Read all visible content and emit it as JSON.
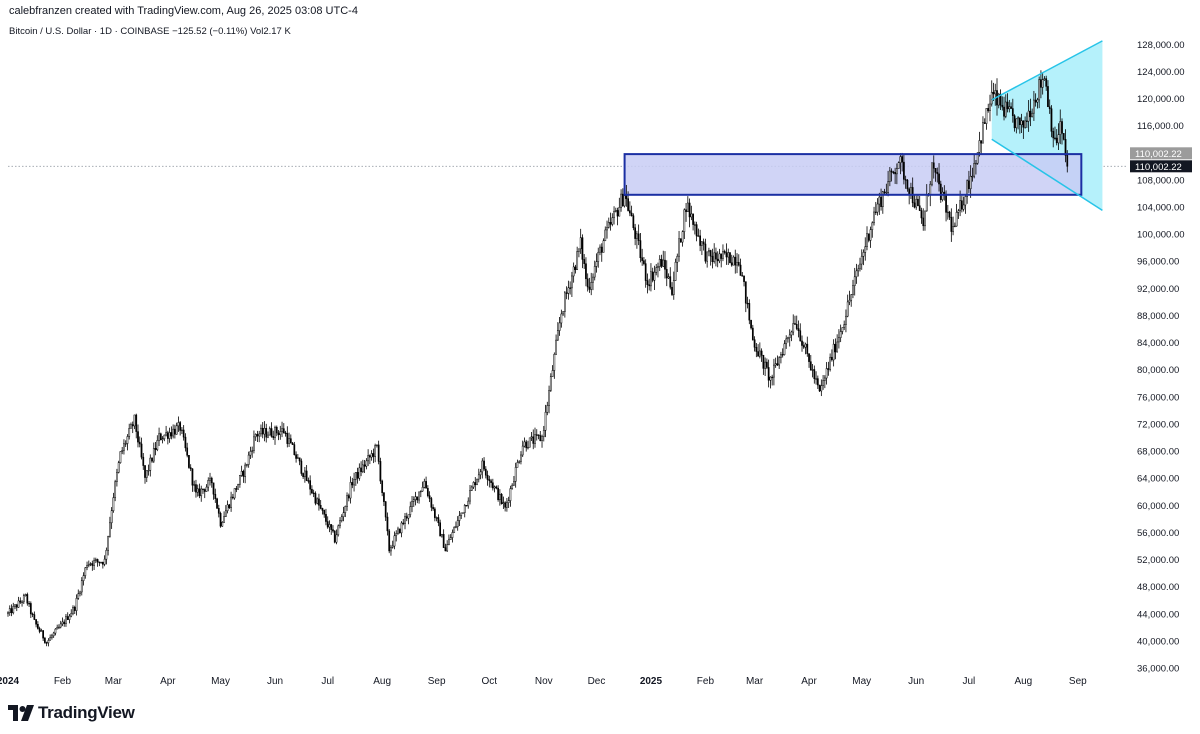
{
  "header": {
    "created_line": "calebfranzen created with TradingView.com, Aug 26, 2025 03:08 UTC-4",
    "symbol_line": "Bitcoin / U.S. Dollar · 1D · COINBASE  −125.52 (−0.11%)  Vol2.17 K"
  },
  "logo": {
    "text": "TradingView",
    "icon": "tradingview-logo-icon"
  },
  "colors": {
    "candle": "#000000",
    "zone_fill": "#c8cdf5",
    "zone_border": "#1b2fa3",
    "wedge_fill": "#b5f1fb",
    "wedge_line": "#27c4e8",
    "price_line": "#9aa0a8",
    "badge_last": "#131722",
    "badge_prev": "#9b9b9b"
  },
  "chart_data": {
    "type": "candlestick",
    "title": "",
    "xlabel": "",
    "ylabel": "",
    "ylim": [
      33500,
      130400
    ],
    "y_ticks": [
      36000,
      40000,
      44000,
      48000,
      52000,
      56000,
      60000,
      64000,
      68000,
      72000,
      76000,
      80000,
      84000,
      88000,
      92000,
      96000,
      100000,
      104000,
      108000,
      112000,
      116000,
      120000,
      124000,
      128000
    ],
    "y_tick_labels": [
      "36,000.00",
      "40,000.00",
      "44,000.00",
      "48,000.00",
      "52,000.00",
      "56,000.00",
      "60,000.00",
      "64,000.00",
      "68,000.00",
      "72,000.00",
      "76,000.00",
      "80,000.00",
      "84,000.00",
      "88,000.00",
      "92,000.00",
      "96,000.00",
      "100,000.00",
      "104,000.00",
      "108,000.00",
      "112,000.00",
      "116,000.00",
      "120,000.00",
      "124,000.00",
      "128,000.00"
    ],
    "x_range": [
      "2024-01-01",
      "2025-09-29"
    ],
    "x_ticks": [
      {
        "date": "2024-01-01",
        "label": "2024",
        "bold": true
      },
      {
        "date": "2024-02-01",
        "label": "Feb"
      },
      {
        "date": "2024-03-01",
        "label": "Mar"
      },
      {
        "date": "2024-04-01",
        "label": "Apr"
      },
      {
        "date": "2024-05-01",
        "label": "May"
      },
      {
        "date": "2024-06-01",
        "label": "Jun"
      },
      {
        "date": "2024-07-01",
        "label": "Jul"
      },
      {
        "date": "2024-08-01",
        "label": "Aug"
      },
      {
        "date": "2024-09-01",
        "label": "Sep"
      },
      {
        "date": "2024-10-01",
        "label": "Oct"
      },
      {
        "date": "2024-11-01",
        "label": "Nov"
      },
      {
        "date": "2024-12-01",
        "label": "Dec"
      },
      {
        "date": "2025-01-01",
        "label": "2025",
        "bold": true
      },
      {
        "date": "2025-02-01",
        "label": "Feb"
      },
      {
        "date": "2025-03-01",
        "label": "Mar"
      },
      {
        "date": "2025-04-01",
        "label": "Apr"
      },
      {
        "date": "2025-05-01",
        "label": "May"
      },
      {
        "date": "2025-06-01",
        "label": "Jun"
      },
      {
        "date": "2025-07-01",
        "label": "Jul"
      },
      {
        "date": "2025-08-01",
        "label": "Aug"
      },
      {
        "date": "2025-09-01",
        "label": "Sep"
      }
    ],
    "start_date": "2024-01-01",
    "close_path": [
      [
        "2024-01-01",
        44000
      ],
      [
        "2024-01-11",
        46500
      ],
      [
        "2024-01-16",
        42800
      ],
      [
        "2024-01-23",
        39800
      ],
      [
        "2024-02-01",
        42500
      ],
      [
        "2024-02-08",
        45000
      ],
      [
        "2024-02-15",
        51500
      ],
      [
        "2024-02-25",
        51800
      ],
      [
        "2024-03-01",
        61500
      ],
      [
        "2024-03-05",
        67500
      ],
      [
        "2024-03-13",
        72500
      ],
      [
        "2024-03-19",
        64000
      ],
      [
        "2024-03-27",
        70000
      ],
      [
        "2024-04-08",
        71500
      ],
      [
        "2024-04-17",
        61500
      ],
      [
        "2024-04-26",
        63500
      ],
      [
        "2024-05-01",
        57500
      ],
      [
        "2024-05-15",
        65500
      ],
      [
        "2024-05-21",
        70500
      ],
      [
        "2024-06-06",
        71000
      ],
      [
        "2024-06-24",
        61000
      ],
      [
        "2024-07-05",
        55000
      ],
      [
        "2024-07-15",
        63500
      ],
      [
        "2024-07-29",
        68500
      ],
      [
        "2024-08-05",
        53500
      ],
      [
        "2024-08-25",
        63500
      ],
      [
        "2024-09-06",
        53500
      ],
      [
        "2024-09-27",
        66000
      ],
      [
        "2024-10-10",
        59500
      ],
      [
        "2024-10-20",
        69000
      ],
      [
        "2024-10-31",
        70000
      ],
      [
        "2024-11-11",
        88500
      ],
      [
        "2024-11-22",
        98500
      ],
      [
        "2024-11-26",
        92000
      ],
      [
        "2024-12-05",
        99000
      ],
      [
        "2024-12-17",
        106000
      ],
      [
        "2024-12-30",
        93000
      ],
      [
        "2025-01-07",
        96000
      ],
      [
        "2025-01-13",
        92000
      ],
      [
        "2025-01-21",
        104500
      ],
      [
        "2025-02-02",
        96500
      ],
      [
        "2025-02-20",
        96500
      ],
      [
        "2025-02-28",
        84500
      ],
      [
        "2025-03-10",
        78500
      ],
      [
        "2025-03-24",
        87500
      ],
      [
        "2025-04-07",
        76500
      ],
      [
        "2025-04-21",
        87500
      ],
      [
        "2025-05-08",
        103000
      ],
      [
        "2025-05-22",
        111000
      ],
      [
        "2025-06-05",
        101500
      ],
      [
        "2025-06-10",
        110000
      ],
      [
        "2025-06-22",
        100500
      ],
      [
        "2025-07-03",
        109500
      ],
      [
        "2025-07-10",
        116500
      ],
      [
        "2025-07-14",
        120500
      ],
      [
        "2025-07-31",
        115500
      ],
      [
        "2025-08-13",
        123500
      ],
      [
        "2025-08-19",
        113000
      ],
      [
        "2025-08-22",
        116000
      ],
      [
        "2025-08-26",
        110002.22
      ]
    ],
    "annotations": {
      "zone": {
        "from": "2024-12-17",
        "to": "2025-09-03",
        "low": 105800,
        "high": 111800
      },
      "wedge": {
        "start": "2025-07-14",
        "start_top": 119800,
        "start_bottom": 114000,
        "end": "2025-09-15",
        "end_top": 128500,
        "end_bottom": 103500
      },
      "last_price_line": 110002.22
    },
    "price_badges": [
      {
        "value": 110002.22,
        "label": "110,002.22",
        "style": "prev"
      },
      {
        "value": 110002.22,
        "label": "110,002.22",
        "style": "last"
      }
    ]
  }
}
